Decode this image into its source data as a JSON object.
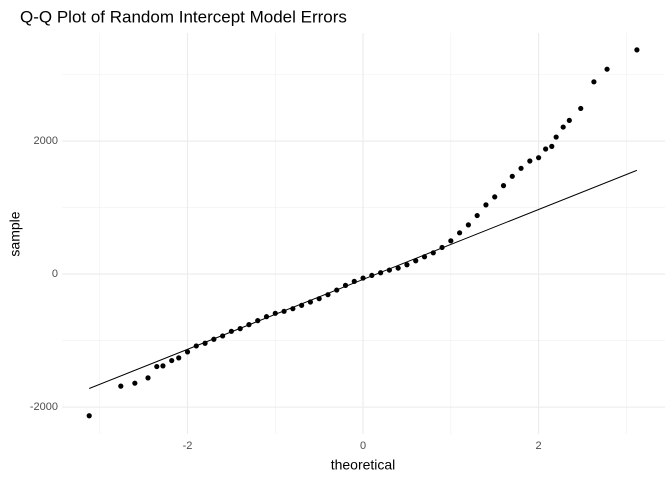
{
  "chart_data": {
    "type": "scatter",
    "title": "Q-Q Plot of Random Intercept Model Errors",
    "x_label": "theoretical",
    "y_label": "sample",
    "xlim": [
      -3.43,
      3.44
    ],
    "ylim": [
      -2404,
      3624
    ],
    "xticks": [
      -2,
      0,
      2
    ],
    "yticks": [
      -2000,
      0,
      2000
    ],
    "minor_xticks": [
      -3,
      -1,
      1,
      3
    ],
    "minor_yticks": [
      -1000,
      1000,
      3000
    ],
    "grid": true,
    "series": [
      {
        "color": "#000000",
        "x": [
          -3.12,
          -2.76,
          -2.6,
          -2.45,
          -2.35,
          -2.28,
          -2.18,
          -2.1,
          -2.0,
          -1.9,
          -1.8,
          -1.7,
          -1.6,
          -1.5,
          -1.4,
          -1.3,
          -1.2,
          -1.1,
          -1.0,
          -0.9,
          -0.8,
          -0.7,
          -0.6,
          -0.5,
          -0.4,
          -0.3,
          -0.2,
          -0.1,
          0.0,
          0.1,
          0.2,
          0.3,
          0.4,
          0.5,
          0.6,
          0.7,
          0.8,
          0.9,
          1.0,
          1.1,
          1.2,
          1.3,
          1.4,
          1.5,
          1.6,
          1.7,
          1.8,
          1.9,
          2.0,
          2.08,
          2.15,
          2.2,
          2.28,
          2.35,
          2.48,
          2.63,
          2.78,
          3.12
        ],
        "values": [
          -2130,
          -1684,
          -1640,
          -1560,
          -1390,
          -1380,
          -1300,
          -1260,
          -1170,
          -1080,
          -1040,
          -980,
          -930,
          -860,
          -820,
          -760,
          -700,
          -640,
          -590,
          -560,
          -520,
          -470,
          -420,
          -370,
          -310,
          -240,
          -170,
          -110,
          -60,
          -20,
          20,
          60,
          90,
          140,
          200,
          260,
          320,
          400,
          500,
          620,
          740,
          880,
          1040,
          1160,
          1330,
          1470,
          1590,
          1700,
          1750,
          1880,
          1920,
          2060,
          2210,
          2310,
          2490,
          2890,
          3080,
          3370
        ]
      }
    ],
    "reference_line": {
      "color": "#000000",
      "x": [
        -3.12,
        3.12
      ],
      "y": [
        -1720,
        1560
      ]
    }
  }
}
